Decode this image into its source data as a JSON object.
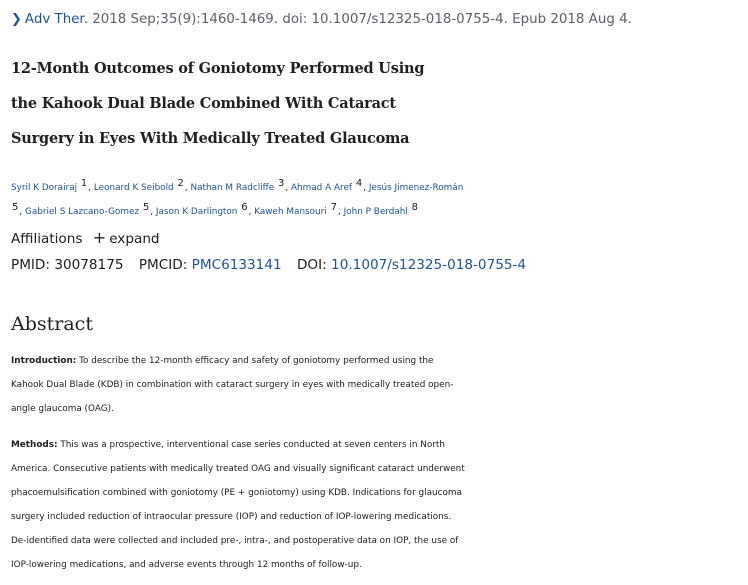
{
  "citation": {
    "journal": "Adv Ther.",
    "details": "2018 Sep;35(9):1460-1469. doi: 10.1007/s12325-018-0755-4. Epub 2018 Aug 4."
  },
  "title_lines": [
    "12-Month Outcomes of Goniotomy Performed Using",
    "the Kahook Dual Blade Combined With Cataract",
    "Surgery in Eyes With Medically Treated Glaucoma"
  ],
  "authors": [
    {
      "name": "Syril K Dorairaj",
      "aff": "1"
    },
    {
      "name": "Leonard K Seibold",
      "aff": "2"
    },
    {
      "name": "Nathan M Radcliffe",
      "aff": "3"
    },
    {
      "name": "Ahmad A Aref",
      "aff": "4"
    },
    {
      "name": "Jesús Jimenez-Román",
      "aff": "5"
    },
    {
      "name": "Gabriel S Lazcano-Gomez",
      "aff": "5"
    },
    {
      "name": "Jason K Darlington",
      "aff": "6"
    },
    {
      "name": "Kaweh Mansouri",
      "aff": "7"
    },
    {
      "name": "John P Berdahl",
      "aff": "8"
    }
  ],
  "affiliations": {
    "label": "Affiliations",
    "expand_label": "expand"
  },
  "ids": {
    "pmid_label": "PMID:",
    "pmid": "30078175",
    "pmcid_label": "PMCID:",
    "pmcid": "PMC6133141",
    "doi_label": "DOI:",
    "doi": "10.1007/s12325-018-0755-4"
  },
  "abstract": {
    "heading": "Abstract",
    "introduction_label": "Introduction:",
    "introduction_lines": [
      "To describe the 12-month efficacy and safety of goniotomy performed using the",
      "Kahook Dual Blade (KDB) in combination with cataract surgery in eyes with medically treated open-",
      "angle glaucoma (OAG)."
    ],
    "methods_label": "Methods:",
    "methods_lines": [
      "This was a prospective, interventional case series conducted at seven centers in North",
      "America. Consecutive patients with medically treated OAG and visually significant cataract underwent",
      "phacoemulsification combined with goniotomy (PE + goniotomy) using KDB. Indications for glaucoma",
      "surgery included reduction of intraocular pressure (IOP) and reduction of IOP-lowering medications.",
      "De-identified data were collected and included pre-, intra-, and postoperative data on IOP, the use of",
      "IOP-lowering medications, and adverse events through 12 months of follow-up."
    ]
  }
}
